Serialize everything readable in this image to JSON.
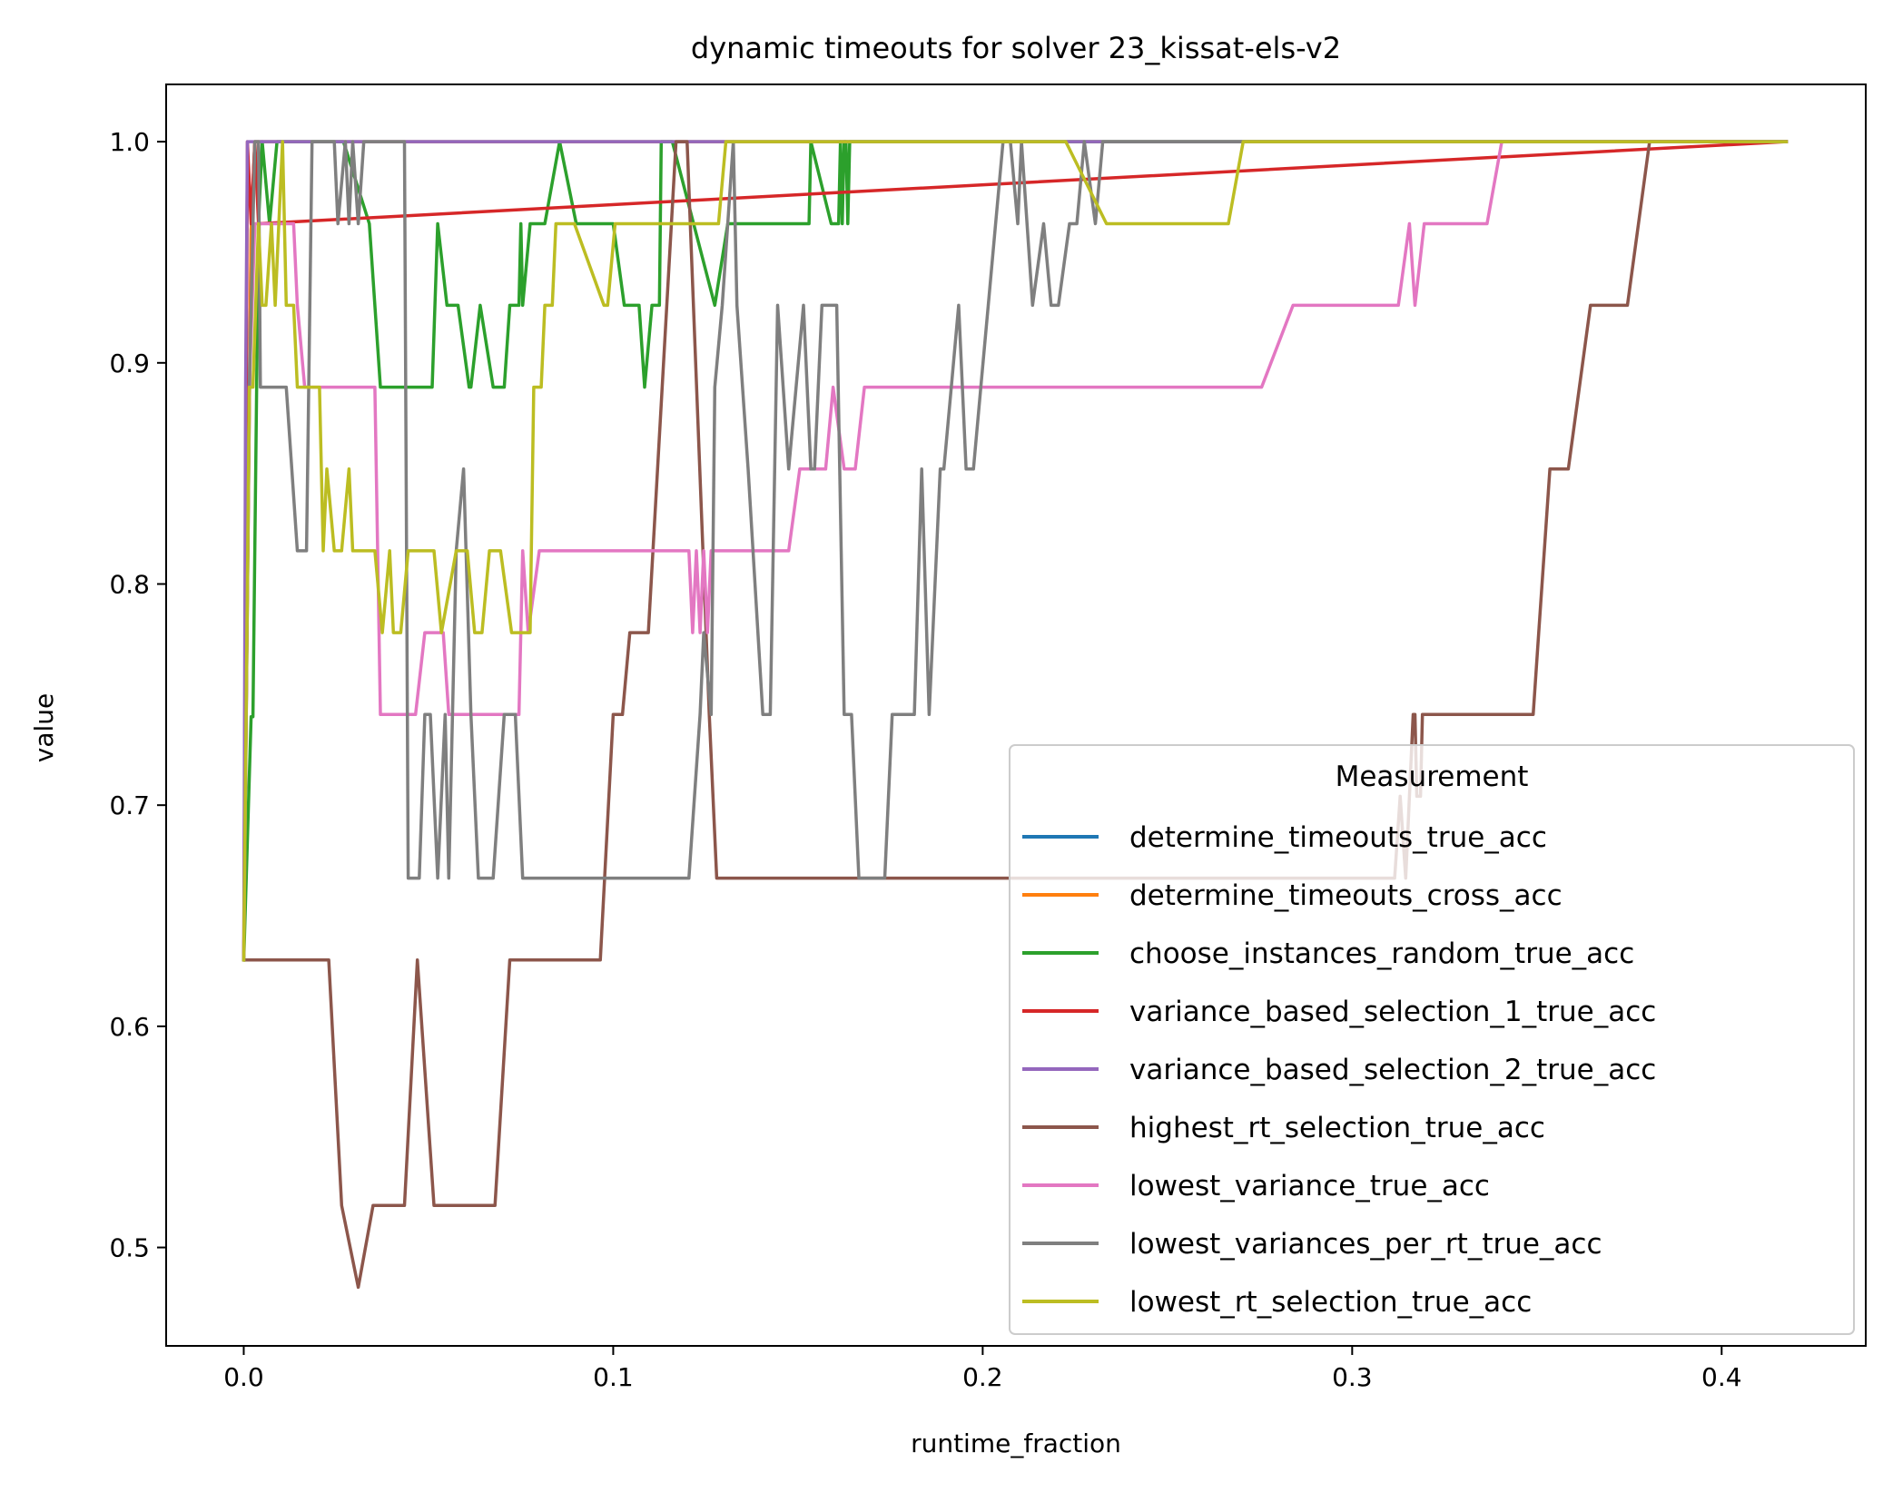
{
  "chart_data": {
    "type": "line",
    "title": "dynamic timeouts for solver 23_kissat-els-v2",
    "xlabel": "runtime_fraction",
    "ylabel": "value",
    "xlim": [
      -0.021,
      0.439
    ],
    "ylim": [
      0.4555,
      1.0259
    ],
    "xticks": [
      0.0,
      0.1,
      0.2,
      0.3,
      0.4
    ],
    "xtick_labels": [
      "0.0",
      "0.1",
      "0.2",
      "0.3",
      "0.4"
    ],
    "yticks": [
      0.5,
      0.6,
      0.7,
      0.8,
      0.9,
      1.0
    ],
    "ytick_labels": [
      "0.5",
      "0.6",
      "0.7",
      "0.8",
      "0.9",
      "1.0"
    ],
    "grid": false,
    "legend": {
      "title": "Measurement",
      "position": "lower right"
    },
    "series": [
      {
        "name": "determine_timeouts_true_acc",
        "color": "#1f77b4",
        "x": [
          0.0,
          0.002,
          0.003,
          0.4175
        ],
        "y": [
          0.63,
          0.96,
          1.0,
          1.0
        ]
      },
      {
        "name": "determine_timeouts_cross_acc",
        "color": "#ff7f0e",
        "x": [
          0.0,
          0.002,
          0.003,
          0.4175
        ],
        "y": [
          0.63,
          0.96,
          1.0,
          1.0
        ]
      },
      {
        "name": "choose_instances_random_true_acc",
        "color": "#2ca02c",
        "x": [
          0.0,
          0.002,
          0.0025,
          0.004,
          0.005,
          0.007,
          0.009,
          0.012,
          0.0155,
          0.021,
          0.024,
          0.027,
          0.034,
          0.037,
          0.039,
          0.051,
          0.0525,
          0.055,
          0.058,
          0.061,
          0.0615,
          0.064,
          0.0675,
          0.0705,
          0.072,
          0.0745,
          0.075,
          0.0755,
          0.0775,
          0.0815,
          0.0855,
          0.0855,
          0.09,
          0.0905,
          0.091,
          0.1,
          0.103,
          0.105,
          0.1045,
          0.107,
          0.1085,
          0.1105,
          0.1125,
          0.113,
          0.116,
          0.1275,
          0.131,
          0.133,
          0.135,
          0.153,
          0.1535,
          0.159,
          0.161,
          0.1615,
          0.162,
          0.1625,
          0.163,
          0.1635,
          0.164,
          0.1645,
          0.165,
          0.4175
        ],
        "y": [
          0.63,
          0.74,
          0.74,
          0.9629,
          1.0,
          0.9629,
          1.0,
          1.0,
          1.0,
          1.0,
          1.0,
          1.0,
          0.9629,
          0.889,
          0.889,
          0.889,
          0.9629,
          0.926,
          0.926,
          0.889,
          0.889,
          0.926,
          0.889,
          0.889,
          0.926,
          0.926,
          0.9629,
          0.926,
          0.9629,
          0.9629,
          1.0,
          1.0,
          0.9629,
          0.9629,
          0.9629,
          0.9629,
          0.926,
          0.926,
          0.926,
          0.926,
          0.889,
          0.926,
          0.926,
          1.0,
          1.0,
          0.926,
          0.9629,
          0.9629,
          0.9629,
          0.9629,
          1.0,
          0.9629,
          0.9629,
          1.0,
          0.9629,
          1.0,
          1.0,
          0.9629,
          1.0,
          1.0,
          1.0,
          1.0
        ]
      },
      {
        "name": "variance_based_selection_1_true_acc",
        "color": "#d62728",
        "x": [
          0.0,
          0.001,
          0.002,
          0.003,
          0.004,
          0.4175
        ],
        "y": [
          0.63,
          1.0,
          0.9629,
          1.0,
          0.9629,
          1.0
        ]
      },
      {
        "name": "variance_based_selection_2_true_acc",
        "color": "#9467bd",
        "x": [
          0.0,
          0.0005,
          0.001,
          0.002,
          0.4175
        ],
        "y": [
          0.63,
          0.889,
          1.0,
          1.0,
          1.0
        ]
      },
      {
        "name": "highest_rt_selection_true_acc",
        "color": "#8c564b",
        "x": [
          0.0,
          0.023,
          0.0265,
          0.031,
          0.035,
          0.0435,
          0.047,
          0.0515,
          0.057,
          0.068,
          0.072,
          0.0965,
          0.1,
          0.1025,
          0.1045,
          0.105,
          0.1095,
          0.117,
          0.1185,
          0.12,
          0.126,
          0.128,
          0.31,
          0.3115,
          0.313,
          0.3145,
          0.3155,
          0.3165,
          0.317,
          0.3175,
          0.3185,
          0.319,
          0.3205,
          0.3225,
          0.3275,
          0.3285,
          0.33,
          0.332,
          0.333,
          0.349,
          0.3505,
          0.3505,
          0.3535,
          0.3585,
          0.3645,
          0.3705,
          0.3745,
          0.3775,
          0.3805,
          0.4175
        ],
        "y": [
          0.63,
          0.63,
          0.519,
          0.482,
          0.519,
          0.519,
          0.63,
          0.519,
          0.519,
          0.519,
          0.63,
          0.63,
          0.741,
          0.741,
          0.778,
          0.778,
          0.778,
          1.0,
          1.0,
          1.0,
          0.741,
          0.667,
          0.667,
          0.667,
          0.704,
          0.667,
          0.704,
          0.741,
          0.741,
          0.704,
          0.704,
          0.741,
          0.741,
          0.741,
          0.741,
          0.741,
          0.741,
          0.741,
          0.741,
          0.741,
          0.778,
          0.778,
          0.852,
          0.852,
          0.926,
          0.926,
          0.926,
          0.963,
          1.0,
          1.0
        ]
      },
      {
        "name": "lowest_variance_true_acc",
        "color": "#e377c2",
        "x": [
          0.0,
          0.0015,
          0.003,
          0.007,
          0.0095,
          0.0135,
          0.0145,
          0.0165,
          0.0205,
          0.0325,
          0.0355,
          0.037,
          0.0465,
          0.049,
          0.054,
          0.0555,
          0.062,
          0.0685,
          0.0745,
          0.0755,
          0.077,
          0.08,
          0.0815,
          0.0825,
          0.1205,
          0.1215,
          0.1225,
          0.1235,
          0.1245,
          0.1255,
          0.1265,
          0.1475,
          0.1505,
          0.1535,
          0.1565,
          0.1575,
          0.1595,
          0.1625,
          0.1655,
          0.168,
          0.1695,
          0.1705,
          0.1715,
          0.2745,
          0.2755,
          0.284,
          0.3115,
          0.3125,
          0.3155,
          0.317,
          0.3195,
          0.3215,
          0.324,
          0.3365,
          0.3405,
          0.4175
        ],
        "y": [
          0.63,
          0.889,
          0.9629,
          0.9629,
          0.9629,
          0.9629,
          0.926,
          0.889,
          0.889,
          0.889,
          0.889,
          0.741,
          0.741,
          0.778,
          0.778,
          0.741,
          0.741,
          0.741,
          0.741,
          0.815,
          0.778,
          0.815,
          0.815,
          0.815,
          0.815,
          0.778,
          0.815,
          0.778,
          0.815,
          0.778,
          0.815,
          0.815,
          0.852,
          0.852,
          0.852,
          0.852,
          0.889,
          0.852,
          0.852,
          0.889,
          0.889,
          0.889,
          0.889,
          0.889,
          0.889,
          0.926,
          0.926,
          0.926,
          0.9629,
          0.926,
          0.9629,
          0.9629,
          0.9629,
          0.9629,
          1.0,
          1.0
        ]
      },
      {
        "name": "lowest_variances_per_rt_true_acc",
        "color": "#7f7f7f",
        "x": [
          0.0,
          0.0015,
          0.003,
          0.004,
          0.0045,
          0.006,
          0.0075,
          0.0085,
          0.0095,
          0.0105,
          0.0115,
          0.013,
          0.0145,
          0.017,
          0.0185,
          0.0205,
          0.0245,
          0.0255,
          0.0275,
          0.0285,
          0.0295,
          0.031,
          0.0325,
          0.0345,
          0.0355,
          0.0405,
          0.0435,
          0.0445,
          0.0475,
          0.049,
          0.0505,
          0.0525,
          0.0545,
          0.0555,
          0.0575,
          0.0595,
          0.0615,
          0.0635,
          0.0655,
          0.0675,
          0.0705,
          0.0735,
          0.0755,
          0.0785,
          0.0815,
          0.0975,
          0.1005,
          0.1015,
          0.1035,
          0.1045,
          0.1075,
          0.1155,
          0.1165,
          0.1205,
          0.1235,
          0.1245,
          0.1265,
          0.1275,
          0.1295,
          0.1325,
          0.1335,
          0.1365,
          0.1405,
          0.1425,
          0.1445,
          0.1475,
          0.1515,
          0.1535,
          0.1545,
          0.1565,
          0.1585,
          0.1605,
          0.1625,
          0.1645,
          0.1665,
          0.1695,
          0.1715,
          0.1735,
          0.1755,
          0.1785,
          0.1815,
          0.1835,
          0.1855,
          0.1885,
          0.1895,
          0.1915,
          0.1935,
          0.1955,
          0.1975,
          0.1995,
          0.2015,
          0.2035,
          0.2055,
          0.2075,
          0.2095,
          0.2105,
          0.2135,
          0.2165,
          0.2185,
          0.2195,
          0.2205,
          0.2235,
          0.2255,
          0.2275,
          0.2305,
          0.2325,
          0.2345,
          0.2375,
          0.2395,
          0.2405,
          0.2415,
          0.2445,
          0.2455,
          0.2465,
          0.2485,
          0.2505,
          0.2525,
          0.2545,
          0.2575,
          0.2655,
          0.4175
        ],
        "y": [
          0.63,
          0.889,
          1.0,
          1.0,
          0.889,
          0.889,
          0.889,
          0.889,
          0.889,
          0.889,
          0.889,
          0.852,
          0.815,
          0.815,
          1.0,
          1.0,
          1.0,
          0.9629,
          1.0,
          0.9629,
          1.0,
          0.9629,
          1.0,
          1.0,
          1.0,
          1.0,
          1.0,
          0.667,
          0.667,
          0.741,
          0.741,
          0.667,
          0.741,
          0.667,
          0.815,
          0.852,
          0.741,
          0.667,
          0.667,
          0.667,
          0.741,
          0.741,
          0.667,
          0.667,
          0.667,
          0.667,
          0.667,
          0.667,
          0.667,
          0.667,
          0.667,
          0.667,
          0.667,
          0.667,
          0.741,
          0.778,
          0.741,
          0.889,
          0.926,
          1.0,
          0.926,
          0.852,
          0.741,
          0.741,
          0.926,
          0.852,
          0.926,
          0.852,
          0.852,
          0.926,
          0.926,
          0.926,
          0.741,
          0.741,
          0.667,
          0.667,
          0.667,
          0.667,
          0.741,
          0.741,
          0.741,
          0.852,
          0.741,
          0.852,
          0.852,
          0.889,
          0.926,
          0.852,
          0.852,
          0.889,
          0.926,
          0.9629,
          1.0,
          1.0,
          0.9629,
          1.0,
          0.926,
          0.9629,
          0.926,
          0.926,
          0.926,
          0.9629,
          0.9629,
          1.0,
          0.9629,
          1.0,
          1.0,
          1.0,
          1.0,
          1.0,
          1.0,
          1.0,
          1.0,
          1.0,
          1.0,
          1.0,
          1.0,
          1.0,
          1.0,
          1.0,
          1.0
        ]
      },
      {
        "name": "lowest_rt_selection_true_acc",
        "color": "#bcbd22",
        "x": [
          0.0,
          0.0015,
          0.0025,
          0.004,
          0.005,
          0.006,
          0.0075,
          0.0085,
          0.0095,
          0.0105,
          0.0115,
          0.0125,
          0.0135,
          0.0145,
          0.0165,
          0.0185,
          0.0205,
          0.0215,
          0.0225,
          0.0245,
          0.0265,
          0.0285,
          0.0295,
          0.031,
          0.0325,
          0.0355,
          0.0375,
          0.0395,
          0.0405,
          0.0415,
          0.0425,
          0.0445,
          0.0485,
          0.0515,
          0.0535,
          0.0575,
          0.0605,
          0.0625,
          0.0645,
          0.0665,
          0.0695,
          0.0725,
          0.0755,
          0.0775,
          0.0785,
          0.0805,
          0.0815,
          0.0825,
          0.0835,
          0.0845,
          0.0865,
          0.0895,
          0.0975,
          0.0985,
          0.1005,
          0.1025,
          0.1045,
          0.1065,
          0.1085,
          0.1105,
          0.1285,
          0.1305,
          0.1325,
          0.1465,
          0.2225,
          0.2335,
          0.2445,
          0.2525,
          0.2665,
          0.2705,
          0.4175
        ],
        "y": [
          0.63,
          0.889,
          0.889,
          0.9629,
          0.926,
          0.926,
          0.9629,
          0.926,
          0.9629,
          1.0,
          0.926,
          0.926,
          0.926,
          0.889,
          0.889,
          0.889,
          0.889,
          0.815,
          0.852,
          0.815,
          0.815,
          0.852,
          0.815,
          0.815,
          0.815,
          0.815,
          0.778,
          0.815,
          0.778,
          0.778,
          0.778,
          0.815,
          0.815,
          0.815,
          0.778,
          0.815,
          0.815,
          0.778,
          0.778,
          0.815,
          0.815,
          0.778,
          0.778,
          0.778,
          0.889,
          0.889,
          0.926,
          0.926,
          0.926,
          0.9629,
          0.9629,
          0.9629,
          0.926,
          0.926,
          0.9629,
          0.9629,
          0.9629,
          0.9629,
          0.9629,
          0.9629,
          0.9629,
          1.0,
          1.0,
          1.0,
          1.0,
          0.9629,
          0.9629,
          0.9629,
          0.9629,
          1.0,
          1.0
        ]
      }
    ]
  }
}
